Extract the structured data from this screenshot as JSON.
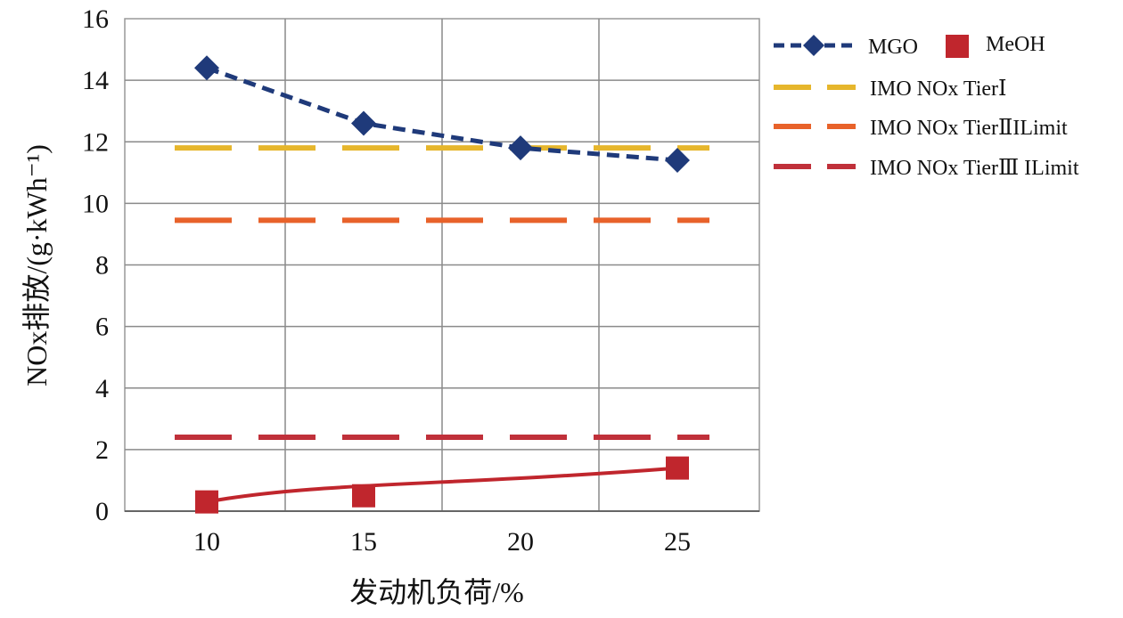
{
  "chart_data": {
    "type": "line",
    "xlabel": "发动机负荷/%",
    "ylabel": "NOx排放/(g·kWh⁻¹)",
    "x": [
      10,
      15,
      20,
      25
    ],
    "x_tick_labels": [
      "10",
      "15",
      "20",
      "25"
    ],
    "ylim": [
      0,
      16
    ],
    "y_ticks": [
      0,
      2,
      4,
      6,
      8,
      10,
      12,
      14,
      16
    ],
    "grid": true,
    "legend_position": "right",
    "series": [
      {
        "name": "MGO",
        "values": [
          14.4,
          12.6,
          11.8,
          11.4
        ],
        "color": "#1f3a7a",
        "style": "dashed-line-diamond-markers"
      },
      {
        "name": "MeOH",
        "values": [
          0.3,
          0.5,
          null,
          1.4
        ],
        "color": "#c0262d",
        "style": "solid-line-square-markers"
      },
      {
        "name": "IMO NOx TierⅠ",
        "values": [
          11.8,
          11.8,
          11.8,
          11.8
        ],
        "color": "#e6b62c",
        "style": "dashed"
      },
      {
        "name": "IMO NOx TierⅡILimit",
        "values": [
          9.45,
          9.45,
          9.45,
          9.45
        ],
        "color": "#e8622a",
        "style": "dashed"
      },
      {
        "name": "IMO NOx TierⅢ ILimit",
        "values": [
          2.4,
          2.4,
          2.4,
          2.4
        ],
        "color": "#c0303a",
        "style": "dashed"
      }
    ]
  }
}
